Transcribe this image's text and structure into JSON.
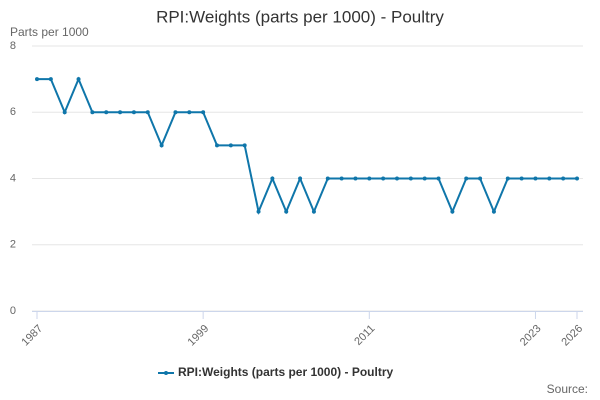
{
  "chart_data": {
    "type": "line",
    "title": "RPI:Weights (parts per 1000) - Poultry",
    "y_label": "Parts per 1000",
    "x": [
      1987,
      1988,
      1989,
      1990,
      1991,
      1992,
      1993,
      1994,
      1995,
      1996,
      1997,
      1998,
      1999,
      2000,
      2001,
      2002,
      2003,
      2004,
      2005,
      2006,
      2007,
      2008,
      2009,
      2010,
      2011,
      2012,
      2013,
      2014,
      2015,
      2016,
      2017,
      2018,
      2019,
      2020,
      2021,
      2022,
      2023,
      2024,
      2025,
      2026
    ],
    "series": [
      {
        "name": "RPI:Weights (parts per 1000) - Poultry",
        "color": "#0f76aa",
        "values": [
          7,
          7,
          6,
          7,
          6,
          6,
          6,
          6,
          6,
          5,
          6,
          6,
          6,
          5,
          5,
          5,
          3,
          4,
          3,
          4,
          3,
          4,
          4,
          4,
          4,
          4,
          4,
          4,
          4,
          4,
          3,
          4,
          4,
          3,
          4,
          4,
          4,
          4,
          4,
          4
        ]
      }
    ],
    "xlim": [
      1987,
      2026
    ],
    "xticks": [
      1987,
      1999,
      2011,
      2023,
      2026
    ],
    "ylim": [
      0,
      8
    ],
    "yticks": [
      0,
      2,
      4,
      6,
      8
    ],
    "grid": true,
    "source_label": "Source:"
  }
}
